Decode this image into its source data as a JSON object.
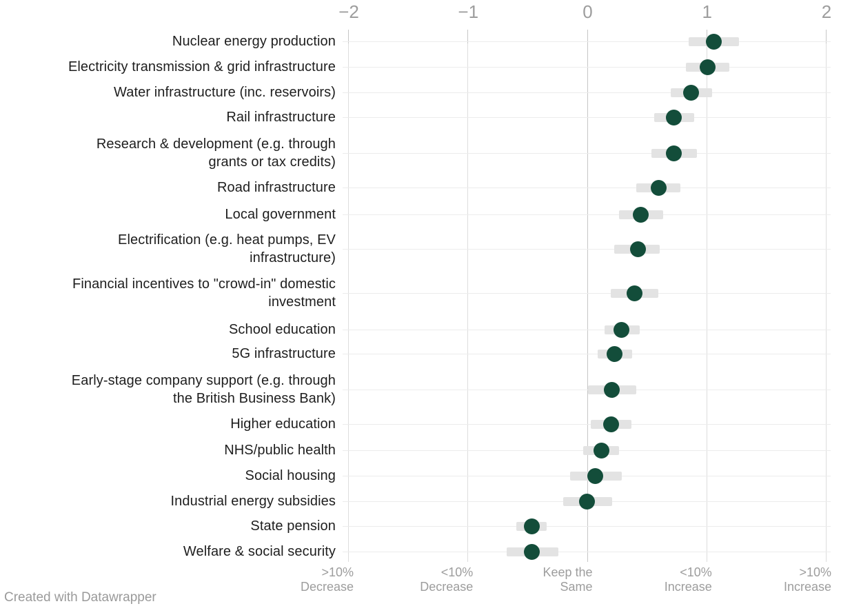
{
  "chart_data": {
    "type": "scatter",
    "subtype": "dot-plot-with-range",
    "title": "",
    "xlabel": "",
    "ylabel": "",
    "x_axis": {
      "range": [
        -2,
        2
      ],
      "grid": true,
      "top_ticks": [
        {
          "value": -2,
          "label": "−2"
        },
        {
          "value": -1,
          "label": "−1"
        },
        {
          "value": 0,
          "label": "0"
        },
        {
          "value": 1,
          "label": "1"
        },
        {
          "value": 2,
          "label": "2"
        }
      ],
      "bottom_ticks": [
        {
          "value": -2,
          "lines": [
            ">10%",
            "Decrease"
          ]
        },
        {
          "value": -1,
          "lines": [
            "<10%",
            "Decrease"
          ]
        },
        {
          "value": 0,
          "lines": [
            "Keep the",
            "Same"
          ]
        },
        {
          "value": 1,
          "lines": [
            "<10%",
            "Increase"
          ]
        },
        {
          "value": 2,
          "lines": [
            ">10%",
            "Increase"
          ]
        }
      ]
    },
    "series": [
      {
        "label_lines": [
          "Nuclear energy production"
        ],
        "value": 1.06,
        "ci": [
          0.85,
          1.27
        ]
      },
      {
        "label_lines": [
          "Electricity transmission & grid infrastructure"
        ],
        "value": 1.01,
        "ci": [
          0.83,
          1.19
        ]
      },
      {
        "label_lines": [
          "Water infrastructure (inc. reservoirs)"
        ],
        "value": 0.87,
        "ci": [
          0.7,
          1.05
        ]
      },
      {
        "label_lines": [
          "Rail infrastructure"
        ],
        "value": 0.73,
        "ci": [
          0.56,
          0.9
        ]
      },
      {
        "label_lines": [
          "Research & development (e.g. through",
          "grants or tax credits)"
        ],
        "value": 0.73,
        "ci": [
          0.54,
          0.92
        ]
      },
      {
        "label_lines": [
          "Road infrastructure"
        ],
        "value": 0.6,
        "ci": [
          0.41,
          0.78
        ]
      },
      {
        "label_lines": [
          "Local government"
        ],
        "value": 0.45,
        "ci": [
          0.27,
          0.64
        ]
      },
      {
        "label_lines": [
          "Electrification (e.g. heat pumps, EV",
          "infrastructure)"
        ],
        "value": 0.43,
        "ci": [
          0.23,
          0.61
        ]
      },
      {
        "label_lines": [
          "Financial incentives to \"crowd-in\" domestic",
          "investment"
        ],
        "value": 0.4,
        "ci": [
          0.2,
          0.6
        ]
      },
      {
        "label_lines": [
          "School education"
        ],
        "value": 0.29,
        "ci": [
          0.15,
          0.44
        ]
      },
      {
        "label_lines": [
          "5G infrastructure"
        ],
        "value": 0.23,
        "ci": [
          0.09,
          0.38
        ]
      },
      {
        "label_lines": [
          "Early-stage company support (e.g. through",
          "the British Business Bank)"
        ],
        "value": 0.21,
        "ci": [
          0.01,
          0.41
        ]
      },
      {
        "label_lines": [
          "Higher education"
        ],
        "value": 0.2,
        "ci": [
          0.03,
          0.37
        ]
      },
      {
        "label_lines": [
          "NHS/public health"
        ],
        "value": 0.12,
        "ci": [
          -0.03,
          0.27
        ]
      },
      {
        "label_lines": [
          "Social housing"
        ],
        "value": 0.07,
        "ci": [
          -0.14,
          0.29
        ]
      },
      {
        "label_lines": [
          "Industrial energy subsidies"
        ],
        "value": 0.0,
        "ci": [
          -0.2,
          0.21
        ]
      },
      {
        "label_lines": [
          "State pension"
        ],
        "value": -0.46,
        "ci": [
          -0.59,
          -0.34
        ]
      },
      {
        "label_lines": [
          "Welfare & social security"
        ],
        "value": -0.46,
        "ci": [
          -0.67,
          -0.24
        ]
      }
    ],
    "legend": null,
    "colors": {
      "dot": "#134d3a",
      "range_bar": "#e3e3e3",
      "row_line": "#ececec",
      "gridline": "#dddddd",
      "zero_line": "#c6c6c6",
      "tick_text": "#9d9d9d",
      "category_text": "#1e1e1e",
      "background": "#ffffff"
    }
  },
  "footer": {
    "attribution": "Created with Datawrapper"
  }
}
